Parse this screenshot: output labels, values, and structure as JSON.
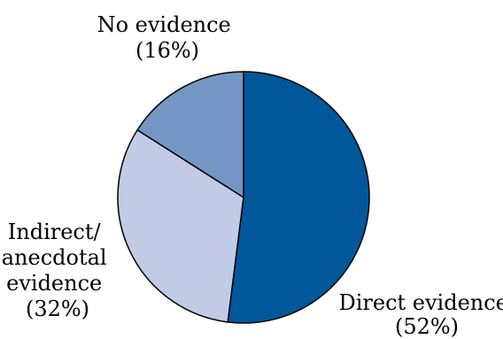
{
  "chart_data": {
    "type": "pie",
    "title": "",
    "slices": [
      {
        "label": "Direct evidence",
        "value": 52,
        "display": [
          "Direct evidence",
          "(52%)"
        ],
        "color": "#00589a"
      },
      {
        "label": "Indirect/anecdotal evidence",
        "value": 32,
        "display": [
          "Indirect/",
          "anecdotal",
          "evidence",
          "(32%)"
        ],
        "color": "#c2cbe6"
      },
      {
        "label": "No evidence",
        "value": 16,
        "display": [
          "No evidence",
          "(16%)"
        ],
        "color": "#7496c4"
      }
    ],
    "start_angle": "12 o'clock",
    "direction": "clockwise",
    "legend": "none"
  }
}
